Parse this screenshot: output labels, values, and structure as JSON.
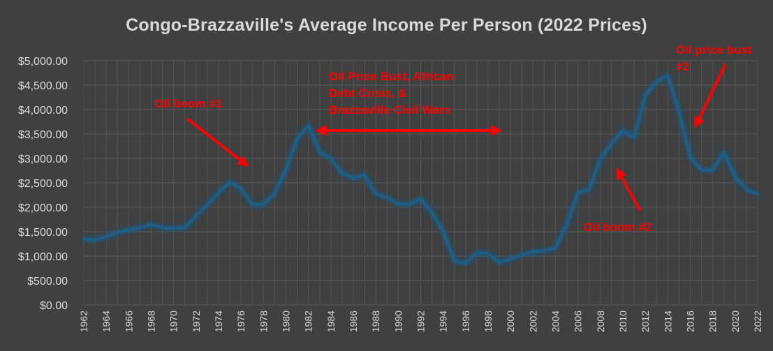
{
  "chart_data": {
    "type": "line",
    "title": "Congo-Brazzaville's Average Income Per Person (2022 Prices)",
    "xlabel": "",
    "ylabel": "",
    "ylim": [
      0,
      5000
    ],
    "y_ticks": [
      {
        "value": 0,
        "label": "$0.00"
      },
      {
        "value": 500,
        "label": "$500.00"
      },
      {
        "value": 1000,
        "label": "$1,000.00"
      },
      {
        "value": 1500,
        "label": "$1,500.00"
      },
      {
        "value": 2000,
        "label": "$2,000.00"
      },
      {
        "value": 2500,
        "label": "$2,500.00"
      },
      {
        "value": 3000,
        "label": "$3,000.00"
      },
      {
        "value": 3500,
        "label": "$3,500.00"
      },
      {
        "value": 4000,
        "label": "$4,000.00"
      },
      {
        "value": 4500,
        "label": "$4,500.00"
      },
      {
        "value": 5000,
        "label": "$5,000.00"
      }
    ],
    "x_tick_labels": [
      "1962",
      "1964",
      "1966",
      "1968",
      "1970",
      "1972",
      "1974",
      "1976",
      "1978",
      "1980",
      "1982",
      "1984",
      "1986",
      "1988",
      "1990",
      "1992",
      "1994",
      "1996",
      "1998",
      "2000",
      "2002",
      "2004",
      "2006",
      "2008",
      "2010",
      "2012",
      "2014",
      "2016",
      "2018",
      "2020",
      "2022"
    ],
    "grid": true,
    "legend": "none",
    "series": [
      {
        "color": "#1f5f8b",
        "x": [
          1962,
          1963,
          1964,
          1965,
          1966,
          1967,
          1968,
          1969,
          1970,
          1971,
          1972,
          1973,
          1974,
          1975,
          1976,
          1977,
          1978,
          1979,
          1980,
          1981,
          1982,
          1983,
          1984,
          1985,
          1986,
          1987,
          1988,
          1989,
          1990,
          1991,
          1992,
          1993,
          1994,
          1995,
          1996,
          1997,
          1998,
          1999,
          2000,
          2001,
          2002,
          2003,
          2004,
          2005,
          2006,
          2007,
          2008,
          2009,
          2010,
          2011,
          2012,
          2013,
          2014,
          2015,
          2016,
          2017,
          2018,
          2019,
          2020,
          2021,
          2022
        ],
        "values": [
          1350,
          1330,
          1400,
          1480,
          1540,
          1580,
          1650,
          1580,
          1570,
          1580,
          1820,
          2050,
          2300,
          2520,
          2380,
          2050,
          2060,
          2280,
          2780,
          3400,
          3680,
          3130,
          3000,
          2700,
          2600,
          2660,
          2270,
          2200,
          2070,
          2060,
          2180,
          1890,
          1500,
          900,
          850,
          1070,
          1050,
          870,
          950,
          1020,
          1090,
          1110,
          1170,
          1650,
          2300,
          2360,
          3000,
          3300,
          3580,
          3420,
          4300,
          4570,
          4700,
          3950,
          3020,
          2760,
          2760,
          3130,
          2620,
          2360,
          2270
        ]
      }
    ],
    "annotations": [
      {
        "text": "Oil boom #1",
        "color": "#ff0000"
      },
      {
        "text": "Oil Price Bust, African\nDebt Crisis, &\nBrazzaville Civil Wars",
        "color": "#ff0000"
      },
      {
        "text": "Oil boom #2",
        "color": "#ff0000"
      },
      {
        "text": "Oil price bust\n#2",
        "color": "#ff0000"
      }
    ]
  }
}
